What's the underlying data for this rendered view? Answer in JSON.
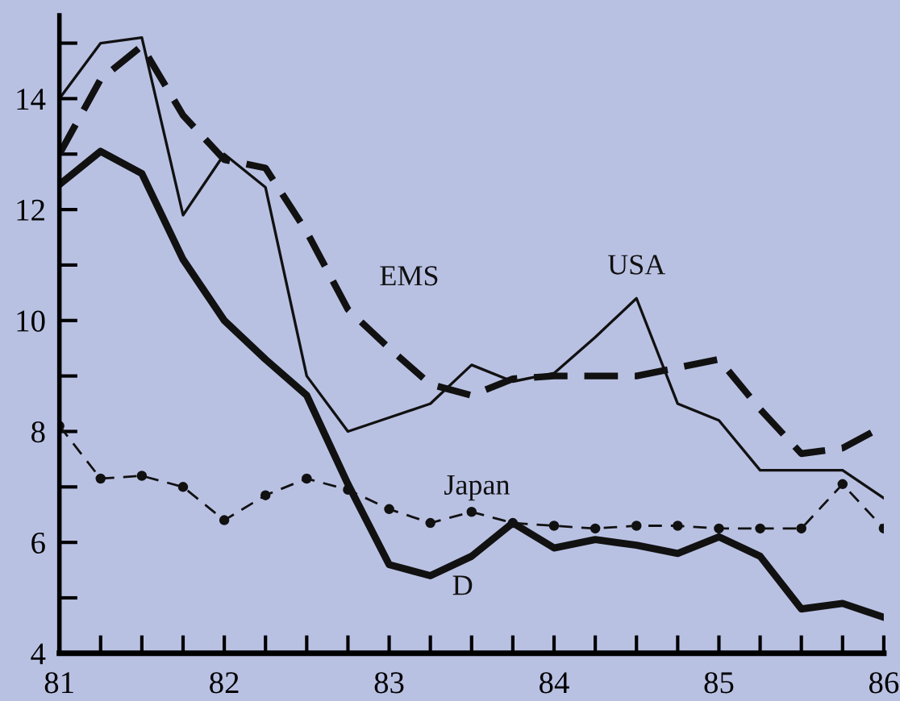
{
  "chart_data": {
    "type": "line",
    "x": [
      81,
      81.25,
      81.5,
      81.75,
      82,
      82.25,
      82.5,
      82.75,
      83,
      83.25,
      83.5,
      83.75,
      84,
      84.25,
      84.5,
      84.75,
      85,
      85.25,
      85.5,
      85.75,
      86
    ],
    "series": [
      {
        "name": "USA",
        "color": "#111111",
        "line_style": "solid",
        "values": [
          14.0,
          15.0,
          15.1,
          11.9,
          13.0,
          12.4,
          9.0,
          8.0,
          8.25,
          8.5,
          9.2,
          8.9,
          9.05,
          9.7,
          10.4,
          8.5,
          8.2,
          7.3,
          7.3,
          7.3,
          6.8
        ]
      },
      {
        "name": "EMS",
        "color": "#111111",
        "line_style": "dashed",
        "values": [
          13.0,
          14.35,
          14.95,
          13.7,
          12.9,
          12.75,
          11.6,
          10.2,
          9.5,
          8.85,
          8.65,
          8.95,
          9.0,
          9.0,
          9.0,
          9.15,
          9.3,
          8.4,
          7.6,
          7.7,
          8.1
        ]
      },
      {
        "name": "Japan",
        "color": "#111111",
        "line_style": "dashed",
        "marker": "circle",
        "values": [
          8.1,
          7.15,
          7.2,
          7.0,
          6.4,
          6.85,
          7.15,
          6.95,
          6.6,
          6.35,
          6.55,
          6.35,
          6.3,
          6.25,
          6.3,
          6.3,
          6.25,
          6.25,
          6.25,
          7.05,
          6.25
        ]
      },
      {
        "name": "D",
        "color": "#111111",
        "line_style": "solid",
        "values": [
          12.45,
          13.05,
          12.65,
          11.1,
          10.0,
          9.3,
          8.65,
          7.05,
          5.6,
          5.4,
          5.75,
          6.35,
          5.9,
          6.05,
          5.95,
          5.8,
          6.1,
          5.75,
          4.8,
          4.9,
          4.65
        ]
      }
    ],
    "xlim": [
      81,
      86
    ],
    "xticks": [
      81,
      {
        "value": 81.25,
        "label": null
      },
      {
        "value": 81.5,
        "label": null
      },
      {
        "value": 81.75,
        "label": null
      },
      82,
      {
        "value": 82.25,
        "label": null
      },
      {
        "value": 82.5,
        "label": null
      },
      {
        "value": 82.75,
        "label": null
      },
      83,
      {
        "value": 83.25,
        "label": null
      },
      {
        "value": 83.5,
        "label": null
      },
      {
        "value": 83.75,
        "label": null
      },
      84,
      {
        "value": 84.25,
        "label": null
      },
      {
        "value": 84.5,
        "label": null
      },
      {
        "value": 84.75,
        "label": null
      },
      85,
      {
        "value": 85.25,
        "label": null
      },
      {
        "value": 85.5,
        "label": null
      },
      {
        "value": 85.75,
        "label": null
      },
      86
    ],
    "ylim": [
      4,
      15.5
    ],
    "yticks": [
      4,
      {
        "value": 5,
        "label": null
      },
      6,
      {
        "value": 7,
        "label": null
      },
      8,
      {
        "value": 9,
        "label": null
      },
      10,
      {
        "value": 11,
        "label": null
      },
      12,
      {
        "value": 13,
        "label": null
      },
      14,
      {
        "value": 15,
        "label": null
      }
    ],
    "grid": false,
    "legend": false
  }
}
